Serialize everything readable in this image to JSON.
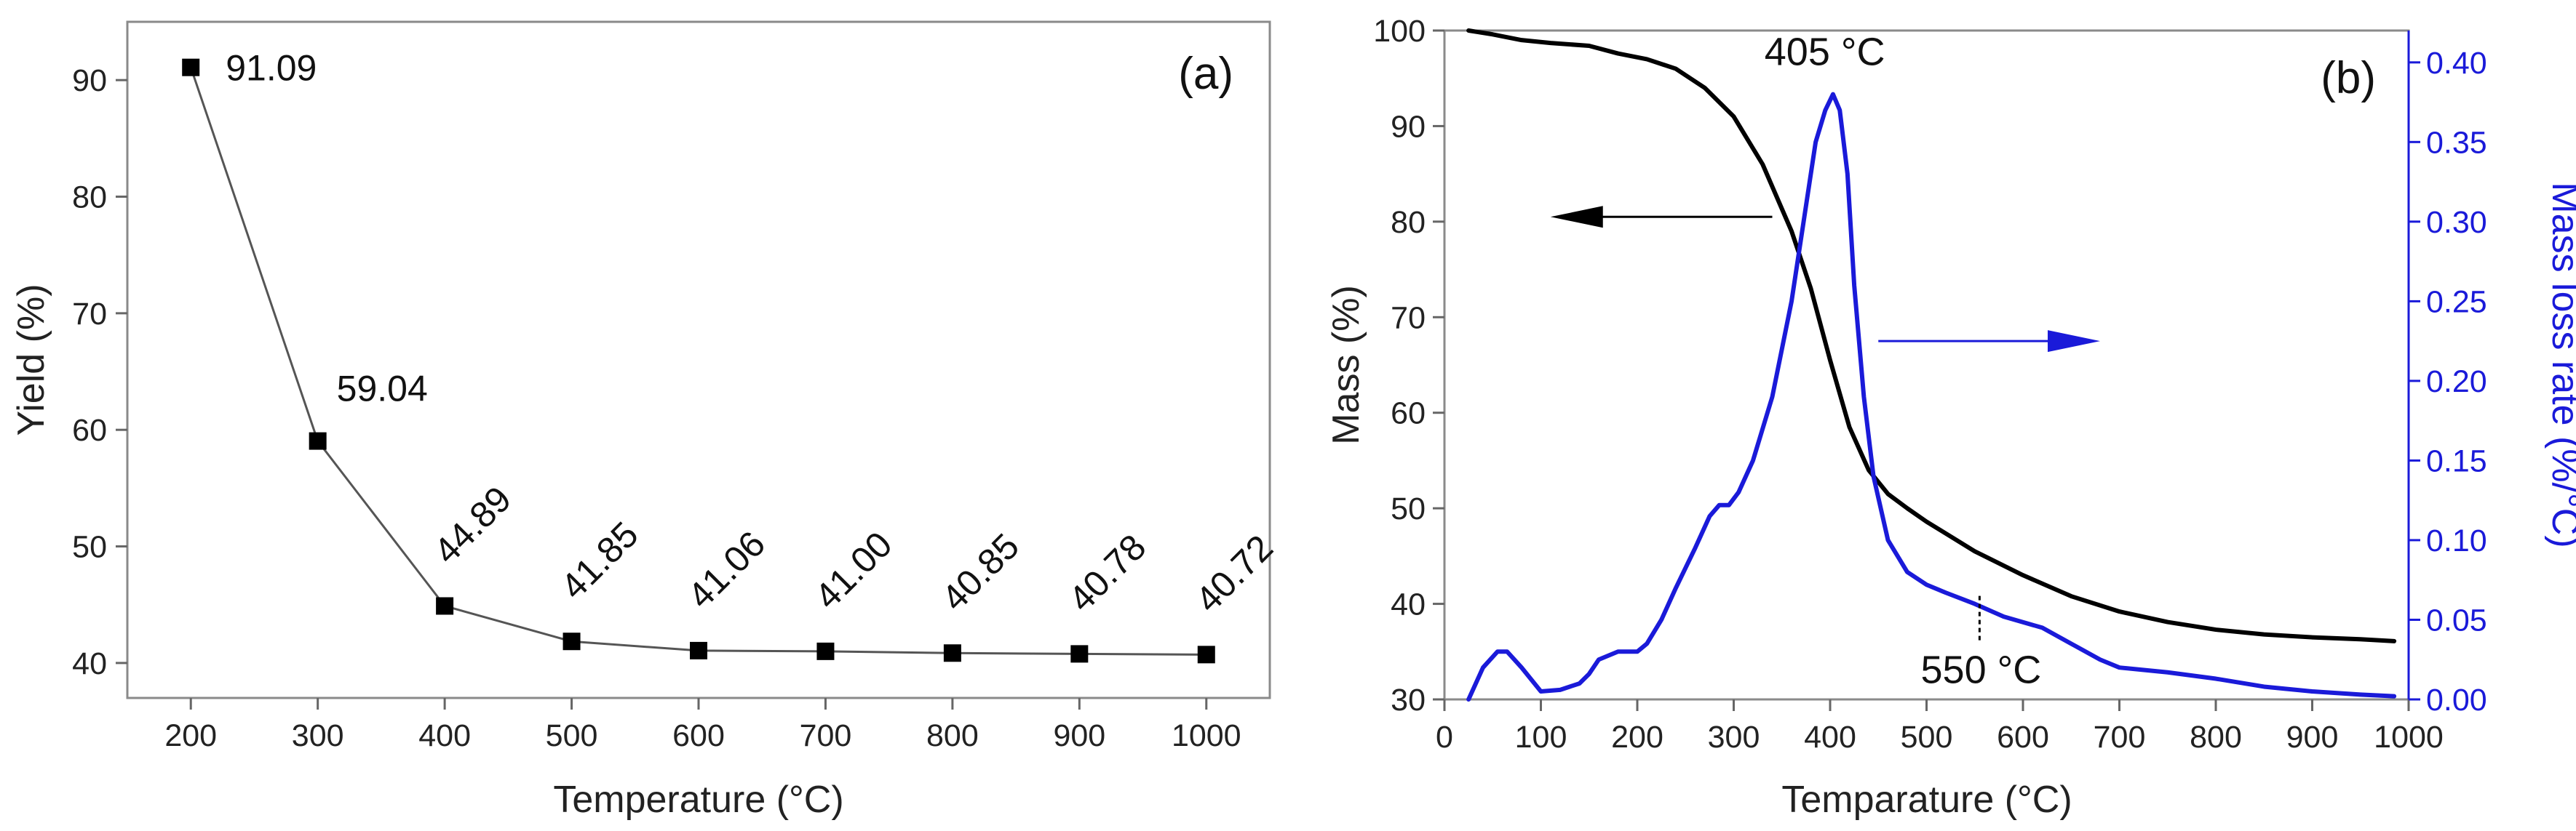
{
  "chart_data": [
    {
      "panel": "a",
      "type": "line",
      "panel_label": "(a)",
      "title": "",
      "xlabel": "Temperature (°C)",
      "ylabel": "Yield (%)",
      "x": [
        200,
        300,
        400,
        500,
        600,
        700,
        800,
        900,
        1000
      ],
      "values": [
        91.09,
        59.04,
        44.89,
        41.85,
        41.06,
        41.0,
        40.85,
        40.78,
        40.72
      ],
      "labels": [
        "91.09",
        "59.04",
        "44.89",
        "41.85",
        "41.06",
        "41.00",
        "40.85",
        "40.78",
        "40.72"
      ],
      "xlim": [
        150,
        1050
      ],
      "ylim": [
        37,
        95
      ],
      "xticks": [
        200,
        300,
        400,
        500,
        600,
        700,
        800,
        900,
        1000
      ],
      "xtick_labels": [
        "200",
        "300",
        "400",
        "500",
        "600",
        "700",
        "800",
        "900",
        "1000"
      ],
      "yticks": [
        40,
        50,
        60,
        70,
        80,
        90
      ],
      "ytick_labels": [
        "40",
        "50",
        "60",
        "70",
        "80",
        "90"
      ],
      "marker": "square",
      "color": "#000000",
      "grid": false
    },
    {
      "panel": "b",
      "type": "line",
      "panel_label": "(b)",
      "title": "",
      "xlabel": "Temparature (°C)",
      "ylabel": "Mass (%)",
      "y2label": "Mass loss rate (%/°C)",
      "xlim": [
        0,
        1000
      ],
      "ylim": [
        30,
        100
      ],
      "y2lim": [
        0,
        0.42
      ],
      "xticks": [
        0,
        100,
        200,
        300,
        400,
        500,
        600,
        700,
        800,
        900,
        1000
      ],
      "xtick_labels": [
        "0",
        "100",
        "200",
        "300",
        "400",
        "500",
        "600",
        "700",
        "800",
        "900",
        "1000"
      ],
      "yticks": [
        30,
        40,
        50,
        60,
        70,
        80,
        90,
        100
      ],
      "ytick_labels": [
        "30",
        "40",
        "50",
        "60",
        "70",
        "80",
        "90",
        "100"
      ],
      "y2ticks": [
        0,
        0.05,
        0.1,
        0.15,
        0.2,
        0.25,
        0.3,
        0.35,
        0.4
      ],
      "y2tick_labels": [
        "0.00",
        "0.05",
        "0.10",
        "0.15",
        "0.20",
        "0.25",
        "0.30",
        "0.35",
        "0.40"
      ],
      "grid": false,
      "series": [
        {
          "name": "Mass",
          "axis": "left",
          "color": "#000000",
          "x": [
            25,
            50,
            80,
            110,
            150,
            180,
            210,
            240,
            270,
            300,
            330,
            360,
            380,
            400,
            420,
            440,
            460,
            480,
            500,
            550,
            600,
            650,
            700,
            750,
            800,
            850,
            900,
            950,
            985
          ],
          "y": [
            100,
            99.6,
            99.0,
            98.7,
            98.4,
            97.6,
            97.0,
            96.0,
            94.0,
            91.0,
            86.0,
            79.0,
            73.0,
            65.5,
            58.5,
            54.0,
            51.5,
            50.0,
            48.6,
            45.5,
            43.0,
            40.8,
            39.2,
            38.1,
            37.3,
            36.8,
            36.5,
            36.3,
            36.1
          ]
        },
        {
          "name": "Mass loss rate",
          "axis": "right",
          "color": "#1a1ad9",
          "x": [
            25,
            40,
            55,
            65,
            80,
            100,
            120,
            140,
            150,
            160,
            180,
            200,
            210,
            225,
            240,
            260,
            275,
            285,
            295,
            305,
            320,
            340,
            360,
            375,
            385,
            395,
            403,
            410,
            418,
            425,
            435,
            445,
            460,
            480,
            500,
            520,
            550,
            580,
            620,
            650,
            680,
            700,
            750,
            800,
            850,
            900,
            950,
            985
          ],
          "y": [
            0.0,
            0.02,
            0.03,
            0.03,
            0.02,
            0.005,
            0.006,
            0.01,
            0.016,
            0.025,
            0.03,
            0.03,
            0.035,
            0.05,
            0.07,
            0.095,
            0.115,
            0.122,
            0.122,
            0.13,
            0.15,
            0.19,
            0.25,
            0.31,
            0.35,
            0.37,
            0.38,
            0.37,
            0.33,
            0.26,
            0.19,
            0.14,
            0.1,
            0.08,
            0.072,
            0.067,
            0.06,
            0.052,
            0.045,
            0.035,
            0.025,
            0.02,
            0.017,
            0.013,
            0.008,
            0.005,
            0.003,
            0.002
          ]
        }
      ],
      "annotations": [
        {
          "text": "405 °C",
          "x": 405,
          "y2": 0.38
        },
        {
          "text": "550 °C",
          "x": 555,
          "y2": 0.065
        }
      ],
      "arrows": [
        {
          "from_x": 340,
          "to_x": 110,
          "y": 80.5,
          "axis": "left",
          "color": "#000000"
        },
        {
          "from_x": 450,
          "to_x": 680,
          "y2": 0.225,
          "axis": "right",
          "color": "#1a1ad9"
        }
      ]
    }
  ]
}
